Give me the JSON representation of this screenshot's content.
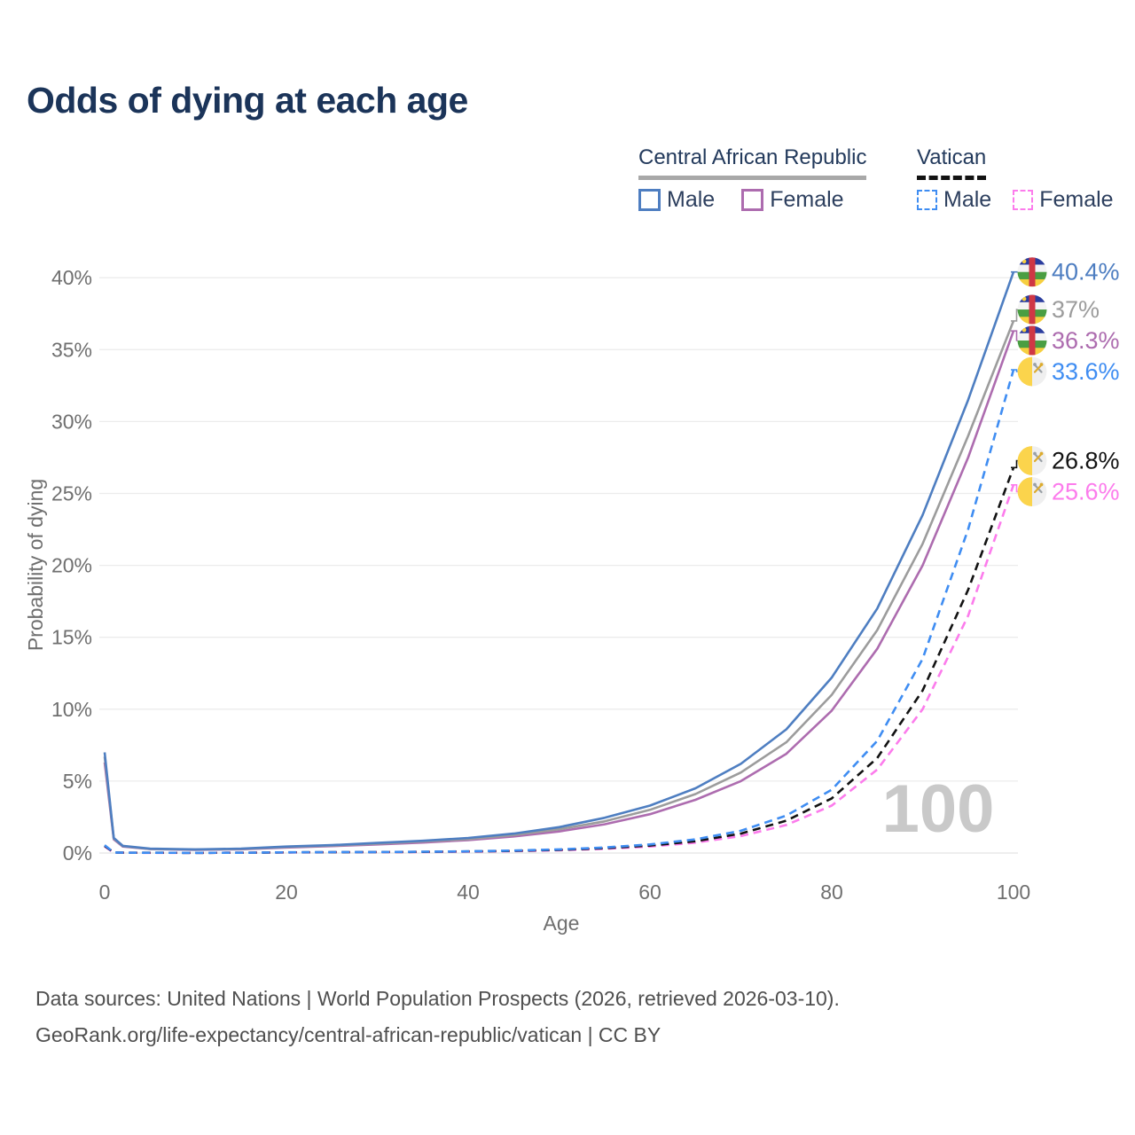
{
  "page": {
    "title": "Odds of dying at each age"
  },
  "legend": {
    "groups": [
      {
        "label": "Central African Republic",
        "underline": "solid",
        "underline_color": "#a8a8a8",
        "items": [
          {
            "label": "Male",
            "color": "#4e7ec1",
            "dash": false
          },
          {
            "label": "Female",
            "color": "#ad6caf",
            "dash": false
          }
        ]
      },
      {
        "label": "Vatican",
        "underline": "dashed",
        "underline_color": "#121212",
        "items": [
          {
            "label": "Male",
            "color": "#3f8df2",
            "dash": true
          },
          {
            "label": "Female",
            "color": "#fc7cec",
            "dash": true
          }
        ]
      }
    ]
  },
  "chart_data": {
    "type": "line",
    "title": "Odds of dying at each age",
    "xlabel": "Age",
    "ylabel": "Probability of dying",
    "x_ticks": [
      0,
      20,
      40,
      60,
      80,
      100
    ],
    "y_ticks": [
      0,
      5,
      10,
      15,
      20,
      25,
      30,
      35,
      40
    ],
    "y_tick_suffix": "%",
    "xlim": [
      0,
      100
    ],
    "ylim": [
      0,
      42
    ],
    "grid": "horizontal",
    "legend_position": "top-right",
    "watermark": "100",
    "ages": [
      0,
      1,
      2,
      5,
      10,
      15,
      20,
      25,
      30,
      35,
      40,
      45,
      50,
      55,
      60,
      65,
      70,
      75,
      80,
      85,
      90,
      95,
      100
    ],
    "series": [
      {
        "name": "Central African Republic Male",
        "flag": "car",
        "color": "#4e7ec1",
        "dash": false,
        "end_label": "40.4%",
        "end_value": 40.4,
        "values": [
          7.0,
          1.05,
          0.5,
          0.3,
          0.25,
          0.3,
          0.45,
          0.55,
          0.7,
          0.85,
          1.05,
          1.35,
          1.8,
          2.45,
          3.3,
          4.5,
          6.2,
          8.6,
          12.2,
          17.0,
          23.5,
          31.5,
          40.4
        ]
      },
      {
        "name": "Central African Republic Total",
        "flag": "car",
        "color": "#9c9c9c",
        "dash": false,
        "end_label": "37%",
        "end_value": 37,
        "values": [
          6.7,
          1.0,
          0.48,
          0.28,
          0.24,
          0.28,
          0.42,
          0.52,
          0.65,
          0.8,
          0.97,
          1.25,
          1.65,
          2.2,
          3.0,
          4.1,
          5.6,
          7.7,
          11.0,
          15.5,
          21.5,
          29.0,
          37.0
        ]
      },
      {
        "name": "Central African Republic Female",
        "flag": "car",
        "color": "#ad6caf",
        "dash": false,
        "end_label": "36.3%",
        "end_value": 36.3,
        "values": [
          6.3,
          0.95,
          0.45,
          0.27,
          0.22,
          0.26,
          0.38,
          0.48,
          0.6,
          0.73,
          0.9,
          1.15,
          1.5,
          2.0,
          2.7,
          3.7,
          5.0,
          6.9,
          9.9,
          14.2,
          20.0,
          27.5,
          36.3
        ]
      },
      {
        "name": "Vatican Male",
        "flag": "vatican",
        "color": "#3f8df2",
        "dash": true,
        "end_label": "33.6%",
        "end_value": 33.6,
        "values": [
          0.55,
          0.04,
          0.025,
          0.018,
          0.015,
          0.02,
          0.05,
          0.06,
          0.07,
          0.09,
          0.12,
          0.17,
          0.25,
          0.38,
          0.6,
          0.95,
          1.55,
          2.6,
          4.4,
          7.8,
          13.5,
          22.5,
          33.6
        ]
      },
      {
        "name": "Vatican Total",
        "flag": "vatican",
        "color": "#121212",
        "dash": true,
        "end_label": "26.8%",
        "end_value": 26.8,
        "values": [
          0.5,
          0.035,
          0.022,
          0.016,
          0.013,
          0.018,
          0.045,
          0.055,
          0.065,
          0.08,
          0.11,
          0.15,
          0.22,
          0.33,
          0.52,
          0.82,
          1.35,
          2.25,
          3.8,
          6.6,
          11.3,
          18.3,
          26.8
        ]
      },
      {
        "name": "Vatican Female",
        "flag": "vatican",
        "color": "#fc7cec",
        "dash": true,
        "end_label": "25.6%",
        "end_value": 25.6,
        "values": [
          0.45,
          0.03,
          0.02,
          0.015,
          0.012,
          0.016,
          0.04,
          0.05,
          0.06,
          0.07,
          0.095,
          0.13,
          0.19,
          0.29,
          0.45,
          0.72,
          1.18,
          1.95,
          3.3,
          5.8,
          10.0,
          16.5,
          25.6
        ]
      }
    ],
    "flag_colors": {
      "car": {
        "blue": "#2b3d9e",
        "white": "#f4f4f4",
        "green": "#4a9e42",
        "yellow": "#f6cf40",
        "red": "#cf3745",
        "star": "#f6cf40"
      },
      "vatican": {
        "yellow": "#fbd44c",
        "white": "#efefef",
        "key_gold": "#dcab2e",
        "key_silver": "#9aa0a6"
      }
    }
  },
  "style_colors": {
    "title": "#1b3459",
    "axis_text": "#6f6f6f",
    "grid": "#ececec",
    "watermark": "#c9c9c9",
    "footer": "#4f4f4f"
  },
  "footer": {
    "line1": "Data sources: United Nations | World Population Prospects (2026, retrieved 2026-03-10).",
    "line2": "GeoRank.org/life-expectancy/central-african-republic/vatican | CC BY"
  }
}
